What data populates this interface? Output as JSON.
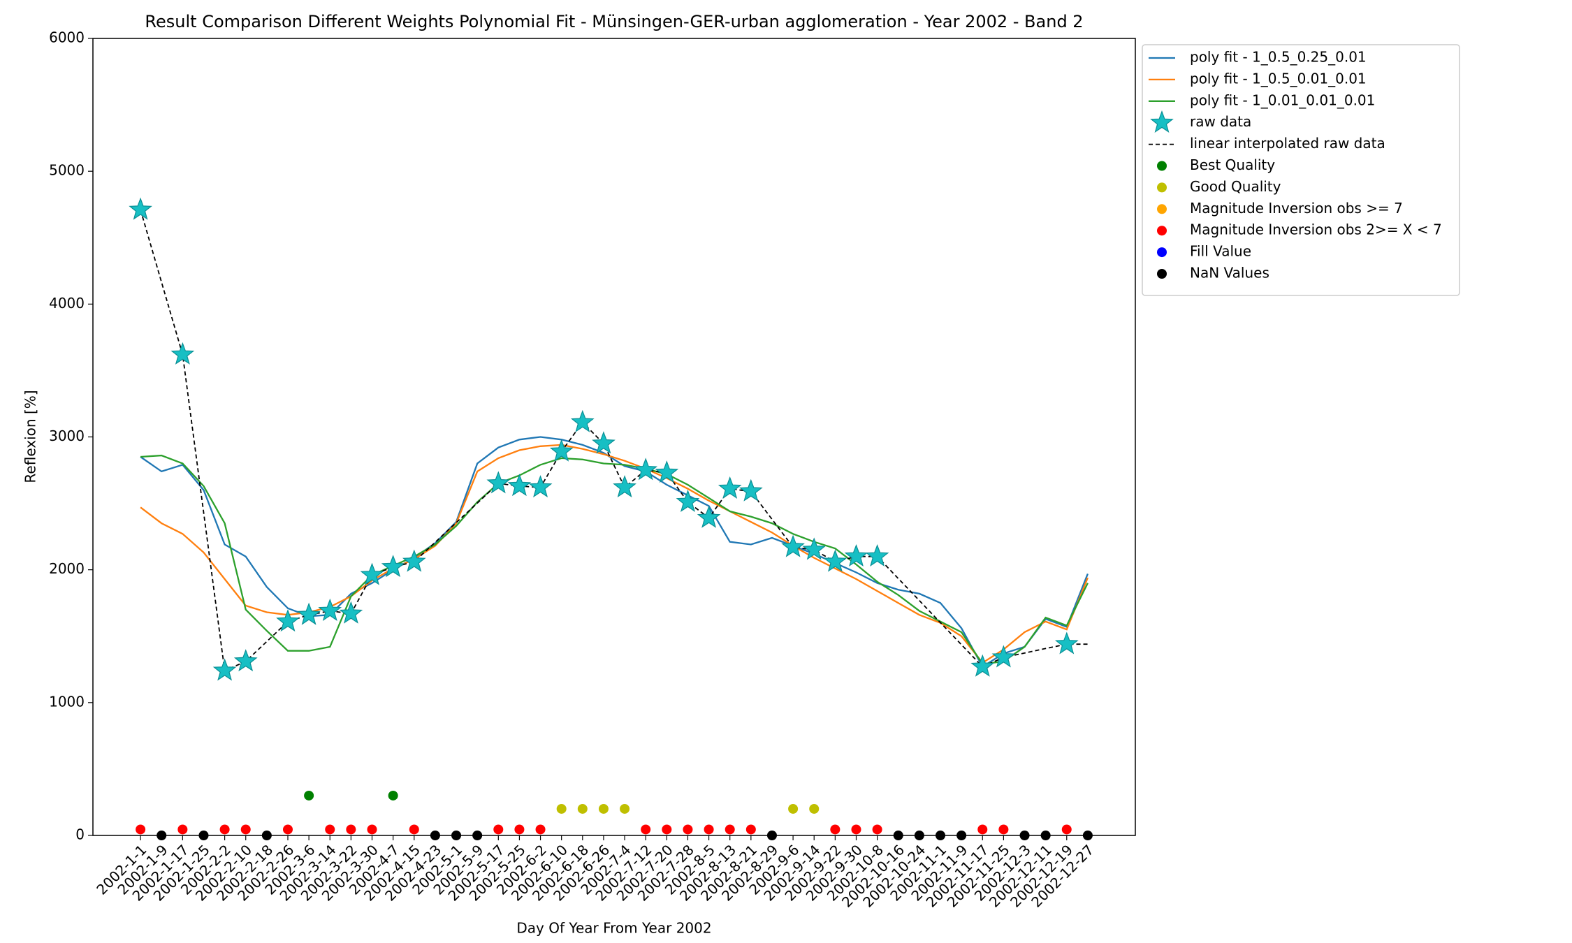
{
  "chart_data": {
    "type": "line",
    "title": "Result Comparison Different Weights Polynomial Fit - Münsingen-GER-urban agglomeration - Year 2002 - Band 2",
    "xlabel": "Day Of Year From Year 2002",
    "ylabel": "Reflexion [%]",
    "ylim": [
      0,
      6000
    ],
    "yticks": [
      0,
      1000,
      2000,
      3000,
      4000,
      5000,
      6000
    ],
    "legend": "outside upper right",
    "categories": [
      "2002-1-1",
      "2002-1-9",
      "2002-1-17",
      "2002-1-25",
      "2002-2-2",
      "2002-2-10",
      "2002-2-18",
      "2002-2-26",
      "2002-3-6",
      "2002-3-14",
      "2002-3-22",
      "2002-3-30",
      "2002-4-7",
      "2002-4-15",
      "2002-4-23",
      "2002-5-1",
      "2002-5-9",
      "2002-5-17",
      "2002-5-25",
      "2002-6-2",
      "2002-6-10",
      "2002-6-18",
      "2002-6-26",
      "2002-7-4",
      "2002-7-12",
      "2002-7-20",
      "2002-7-28",
      "2002-8-5",
      "2002-8-13",
      "2002-8-21",
      "2002-8-29",
      "2002-9-6",
      "2002-9-14",
      "2002-9-22",
      "2002-9-30",
      "2002-10-8",
      "2002-10-16",
      "2002-10-24",
      "2002-11-1",
      "2002-11-9",
      "2002-11-17",
      "2002-11-25",
      "2002-12-3",
      "2002-12-11",
      "2002-12-19",
      "2002-12-27"
    ],
    "series": [
      {
        "name": "poly fit - 1_0.5_0.25_0.01",
        "color": "#1f77b4",
        "style": "solid",
        "values": [
          2850,
          2740,
          2790,
          2600,
          2190,
          2100,
          1870,
          1710,
          1650,
          1660,
          1820,
          1900,
          2000,
          2090,
          2200,
          2360,
          2800,
          2920,
          2980,
          3000,
          2980,
          2940,
          2880,
          2780,
          2740,
          2640,
          2560,
          2480,
          2210,
          2190,
          2240,
          2180,
          2120,
          2050,
          1980,
          1900,
          1850,
          1820,
          1750,
          1560,
          1270,
          1370,
          1420,
          1630,
          1570,
          1970
        ]
      },
      {
        "name": "poly fit - 1_0.5_0.01_0.01",
        "color": "#ff7f0e",
        "style": "solid",
        "values": [
          2470,
          2350,
          2270,
          2130,
          1930,
          1730,
          1680,
          1660,
          1680,
          1720,
          1800,
          1920,
          2010,
          2080,
          2180,
          2350,
          2740,
          2840,
          2900,
          2930,
          2940,
          2910,
          2870,
          2820,
          2760,
          2690,
          2610,
          2520,
          2440,
          2360,
          2280,
          2180,
          2090,
          2010,
          1930,
          1840,
          1750,
          1660,
          1600,
          1500,
          1300,
          1400,
          1530,
          1610,
          1550,
          1940
        ]
      },
      {
        "name": "poly fit - 1_0.01_0.01_0.01",
        "color": "#2ca02c",
        "style": "solid",
        "values": [
          2850,
          2860,
          2800,
          2630,
          2350,
          1700,
          1540,
          1390,
          1390,
          1420,
          1800,
          1960,
          2030,
          2100,
          2190,
          2330,
          2510,
          2650,
          2710,
          2790,
          2840,
          2830,
          2800,
          2790,
          2760,
          2720,
          2640,
          2540,
          2440,
          2400,
          2350,
          2270,
          2210,
          2160,
          2040,
          1910,
          1810,
          1690,
          1610,
          1530,
          1290,
          1310,
          1420,
          1640,
          1580,
          1900
        ]
      },
      {
        "name": "raw data",
        "color": "#17bfc4",
        "style": "star",
        "values": [
          4710,
          null,
          3620,
          null,
          1240,
          1310,
          null,
          1610,
          1660,
          1690,
          1670,
          1960,
          2020,
          2060,
          null,
          null,
          null,
          2650,
          2630,
          2620,
          2890,
          3110,
          2950,
          2620,
          2750,
          2730,
          2510,
          2390,
          2610,
          2590,
          null,
          2170,
          2150,
          2060,
          2100,
          2100,
          null,
          null,
          null,
          null,
          1270,
          1340,
          null,
          null,
          1440,
          null
        ]
      },
      {
        "name": "linear interpolated raw data",
        "color": "#000000",
        "style": "dashed",
        "values": [
          4710,
          4165,
          3620,
          2430,
          1240,
          1310,
          1460,
          1610,
          1660,
          1690,
          1670,
          1960,
          2020,
          2060,
          2207,
          2355,
          2502,
          2650,
          2630,
          2620,
          2890,
          3110,
          2950,
          2620,
          2750,
          2730,
          2510,
          2390,
          2610,
          2590,
          2380,
          2170,
          2150,
          2060,
          2100,
          2100,
          1934,
          1768,
          1602,
          1436,
          1270,
          1340,
          1373,
          1407,
          1440,
          1440
        ]
      },
      {
        "name": "Best Quality",
        "color": "#008000",
        "style": "dot",
        "values": [
          null,
          null,
          null,
          null,
          null,
          null,
          null,
          null,
          300,
          null,
          null,
          null,
          300,
          null,
          null,
          null,
          null,
          null,
          null,
          null,
          null,
          null,
          null,
          null,
          null,
          null,
          null,
          null,
          null,
          null,
          null,
          null,
          null,
          null,
          null,
          null,
          null,
          null,
          null,
          null,
          null,
          null,
          null,
          null,
          null,
          null
        ]
      },
      {
        "name": "Good Quality",
        "color": "#bfbf00",
        "style": "dot",
        "values": [
          null,
          null,
          null,
          null,
          null,
          null,
          null,
          null,
          null,
          null,
          null,
          null,
          null,
          null,
          null,
          null,
          null,
          null,
          null,
          null,
          200,
          200,
          200,
          200,
          null,
          null,
          null,
          null,
          null,
          null,
          null,
          200,
          200,
          null,
          null,
          null,
          null,
          null,
          null,
          null,
          null,
          null,
          null,
          null,
          null,
          null
        ]
      },
      {
        "name": "Magnitude Inversion obs >= 7",
        "color": "#ffa500",
        "style": "dot",
        "values": [
          null,
          null,
          null,
          null,
          null,
          null,
          null,
          null,
          null,
          null,
          null,
          null,
          null,
          null,
          null,
          null,
          null,
          null,
          null,
          null,
          null,
          null,
          null,
          null,
          null,
          null,
          null,
          null,
          null,
          null,
          null,
          null,
          null,
          null,
          null,
          null,
          null,
          null,
          null,
          null,
          null,
          null,
          null,
          null,
          null,
          null
        ]
      },
      {
        "name": "Magnitude Inversion obs 2>= X < 7",
        "color": "#ff0000",
        "style": "dot",
        "values": [
          45,
          null,
          45,
          null,
          45,
          45,
          null,
          45,
          null,
          45,
          45,
          45,
          null,
          45,
          null,
          null,
          null,
          45,
          45,
          45,
          null,
          null,
          null,
          null,
          45,
          45,
          45,
          45,
          45,
          45,
          null,
          null,
          null,
          45,
          45,
          45,
          null,
          null,
          null,
          null,
          45,
          45,
          null,
          null,
          45,
          null
        ]
      },
      {
        "name": "Fill Value",
        "color": "#0000ff",
        "style": "dot",
        "values": [
          null,
          null,
          null,
          null,
          null,
          null,
          null,
          null,
          null,
          null,
          null,
          null,
          null,
          null,
          null,
          null,
          null,
          null,
          null,
          null,
          null,
          null,
          null,
          null,
          null,
          null,
          null,
          null,
          null,
          null,
          null,
          null,
          null,
          null,
          null,
          null,
          null,
          null,
          null,
          null,
          null,
          null,
          null,
          null,
          null,
          null
        ]
      },
      {
        "name": "NaN Values",
        "color": "#000000",
        "style": "dot",
        "values": [
          null,
          0,
          null,
          0,
          null,
          null,
          0,
          null,
          null,
          null,
          null,
          null,
          null,
          null,
          0,
          0,
          0,
          null,
          null,
          null,
          null,
          null,
          null,
          null,
          null,
          null,
          null,
          null,
          null,
          null,
          0,
          null,
          null,
          null,
          null,
          null,
          0,
          0,
          0,
          0,
          null,
          null,
          0,
          0,
          null,
          0
        ]
      }
    ]
  }
}
